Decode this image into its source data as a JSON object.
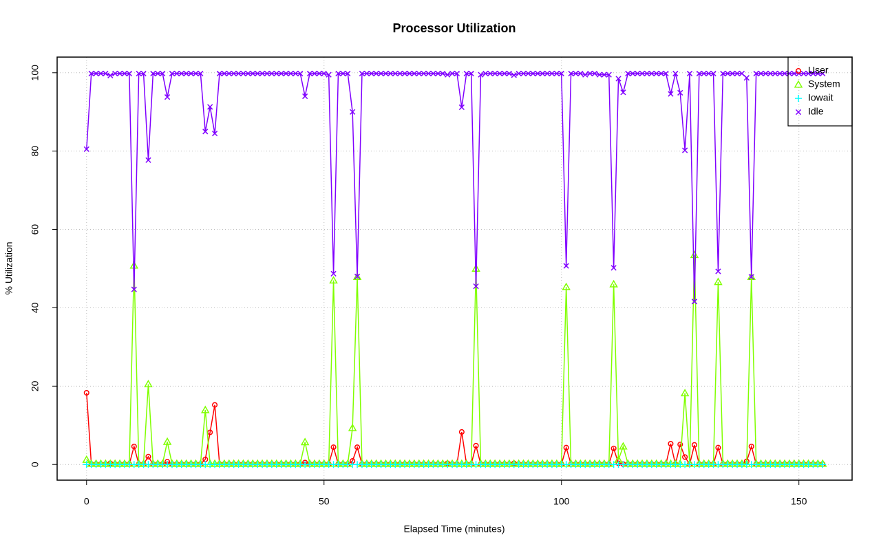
{
  "chart_data": {
    "type": "line",
    "title": "Processor Utilization",
    "x_label": "Elapsed Time (minutes)",
    "y_label": "% Utilization",
    "xlim": [
      -6.2,
      161.2
    ],
    "ylim": [
      -4,
      104
    ],
    "xticks": [
      0,
      50,
      100,
      150
    ],
    "yticks": [
      0,
      20,
      40,
      60,
      80,
      100
    ],
    "grid": true,
    "legend": "topright",
    "x": [
      0,
      1,
      2,
      3,
      4,
      5,
      6,
      7,
      8,
      9,
      10,
      11,
      12,
      13,
      14,
      15,
      16,
      17,
      18,
      19,
      20,
      21,
      22,
      23,
      24,
      25,
      26,
      27,
      28,
      29,
      30,
      31,
      32,
      33,
      34,
      35,
      36,
      37,
      38,
      39,
      40,
      41,
      42,
      43,
      44,
      45,
      46,
      47,
      48,
      49,
      50,
      51,
      52,
      53,
      54,
      55,
      56,
      57,
      58,
      59,
      60,
      61,
      62,
      63,
      64,
      65,
      66,
      67,
      68,
      69,
      70,
      71,
      72,
      73,
      74,
      75,
      76,
      77,
      78,
      79,
      80,
      81,
      82,
      83,
      84,
      85,
      86,
      87,
      88,
      89,
      90,
      91,
      92,
      93,
      94,
      95,
      96,
      97,
      98,
      99,
      100,
      101,
      102,
      103,
      104,
      105,
      106,
      107,
      108,
      109,
      110,
      111,
      112,
      113,
      114,
      115,
      116,
      117,
      118,
      119,
      120,
      121,
      122,
      123,
      124,
      125,
      126,
      127,
      128,
      129,
      130,
      131,
      132,
      133,
      134,
      135,
      136,
      137,
      138,
      139,
      140,
      141,
      142,
      143,
      144,
      145,
      146,
      147,
      148,
      149,
      150,
      151,
      152,
      153,
      154,
      155
    ],
    "series": [
      {
        "name": "User",
        "color": "#ff0000",
        "marker": "circle",
        "values": [
          18.3,
          0.1,
          0.1,
          0.1,
          0.1,
          0.3,
          0.1,
          0.1,
          0.1,
          0.1,
          4.6,
          0.1,
          0.1,
          2.0,
          0.1,
          0.1,
          0.1,
          0.7,
          0.1,
          0.1,
          0.1,
          0.1,
          0.1,
          0.1,
          0.1,
          1.3,
          8.2,
          15.2,
          0.1,
          0.1,
          0.1,
          0.1,
          0.1,
          0.1,
          0.1,
          0.1,
          0.1,
          0.1,
          0.1,
          0.1,
          0.1,
          0.1,
          0.1,
          0.1,
          0.1,
          0.1,
          0.5,
          0.1,
          0.1,
          0.1,
          0.1,
          0.1,
          4.4,
          0.1,
          0.1,
          0.1,
          0.9,
          4.4,
          0.1,
          0.1,
          0.1,
          0.1,
          0.1,
          0.1,
          0.1,
          0.1,
          0.1,
          0.1,
          0.1,
          0.1,
          0.1,
          0.1,
          0.1,
          0.1,
          0.1,
          0.1,
          0.3,
          0.1,
          0.1,
          8.3,
          0.1,
          0.1,
          4.8,
          0.1,
          0.1,
          0.1,
          0.1,
          0.1,
          0.1,
          0.1,
          0.3,
          0.1,
          0.1,
          0.1,
          0.1,
          0.1,
          0.1,
          0.1,
          0.1,
          0.1,
          0.1,
          4.3,
          0.1,
          0.1,
          0.1,
          0.1,
          0.1,
          0.1,
          0.1,
          0.1,
          0.1,
          4.1,
          0.3,
          0.1,
          0.1,
          0.1,
          0.1,
          0.1,
          0.1,
          0.1,
          0.1,
          0.1,
          0.1,
          5.3,
          0.1,
          5.1,
          1.9,
          0.1,
          5.0,
          0.1,
          0.1,
          0.1,
          0.1,
          4.3,
          0.1,
          0.1,
          0.1,
          0.1,
          0.1,
          0.8,
          4.6,
          0.1,
          0.1,
          0.1,
          0.1,
          0.1,
          0.1,
          0.1,
          0.1,
          0.1,
          0.1,
          0.1,
          0.1,
          0.1,
          0.1,
          0.1
        ]
      },
      {
        "name": "System",
        "color": "#80ff00",
        "marker": "triangle",
        "values": [
          1.2,
          0.2,
          0.2,
          0.2,
          0.2,
          0.2,
          0.2,
          0.2,
          0.2,
          0.2,
          50.8,
          0.2,
          0.2,
          20.5,
          0.2,
          0.2,
          0.2,
          5.8,
          0.2,
          0.2,
          0.2,
          0.2,
          0.2,
          0.2,
          0.2,
          13.9,
          0.2,
          0.2,
          0.2,
          0.2,
          0.2,
          0.2,
          0.2,
          0.2,
          0.2,
          0.2,
          0.2,
          0.2,
          0.2,
          0.2,
          0.2,
          0.2,
          0.2,
          0.2,
          0.2,
          0.2,
          5.7,
          0.2,
          0.2,
          0.2,
          0.2,
          0.2,
          47.0,
          0.2,
          0.2,
          0.2,
          9.3,
          47.9,
          0.2,
          0.2,
          0.2,
          0.2,
          0.2,
          0.2,
          0.2,
          0.2,
          0.2,
          0.2,
          0.2,
          0.2,
          0.2,
          0.2,
          0.2,
          0.2,
          0.2,
          0.2,
          0.2,
          0.2,
          0.2,
          0.2,
          0.2,
          0.2,
          50.0,
          0.2,
          0.2,
          0.2,
          0.2,
          0.2,
          0.2,
          0.2,
          0.2,
          0.2,
          0.2,
          0.2,
          0.2,
          0.2,
          0.2,
          0.2,
          0.2,
          0.2,
          0.2,
          45.3,
          0.2,
          0.2,
          0.2,
          0.2,
          0.2,
          0.2,
          0.2,
          0.2,
          0.2,
          46.0,
          1.2,
          4.6,
          0.2,
          0.2,
          0.2,
          0.2,
          0.2,
          0.2,
          0.2,
          0.2,
          0.2,
          0.2,
          0.2,
          0.2,
          18.2,
          0.2,
          53.5,
          0.2,
          0.2,
          0.2,
          0.2,
          46.6,
          0.2,
          0.2,
          0.2,
          0.2,
          0.2,
          0.2,
          47.9,
          0.2,
          0.2,
          0.2,
          0.2,
          0.2,
          0.2,
          0.2,
          0.2,
          0.2,
          0.2,
          0.2,
          0.2,
          0.2,
          0.2,
          0.2
        ]
      },
      {
        "name": "Iowait",
        "color": "#00ffff",
        "marker": "plus",
        "values": [
          0,
          0,
          0,
          0,
          0,
          0,
          0,
          0,
          0,
          0,
          0,
          0,
          0,
          0,
          0,
          0,
          0,
          0,
          0,
          0,
          0,
          0,
          0,
          0,
          0,
          0,
          0,
          0,
          0,
          0,
          0,
          0,
          0,
          0,
          0,
          0,
          0,
          0,
          0,
          0,
          0,
          0,
          0,
          0,
          0,
          0,
          0,
          0,
          0,
          0,
          0,
          0,
          0,
          0,
          0,
          0,
          0,
          0,
          0,
          0,
          0,
          0,
          0,
          0,
          0,
          0,
          0,
          0,
          0,
          0,
          0,
          0,
          0,
          0,
          0,
          0,
          0,
          0,
          0,
          0,
          0,
          0,
          0,
          0,
          0,
          0,
          0,
          0,
          0,
          0,
          0,
          0,
          0,
          0,
          0,
          0,
          0,
          0,
          0,
          0,
          0,
          0,
          0,
          0,
          0,
          0,
          0,
          0,
          0,
          0,
          0,
          0,
          0,
          0,
          0,
          0,
          0,
          0,
          0,
          0,
          0,
          0,
          0,
          0,
          0,
          0,
          0,
          0,
          0,
          0,
          0,
          0,
          0,
          0,
          0,
          0,
          0,
          0,
          0,
          0,
          0,
          0,
          0,
          0,
          0,
          0,
          0,
          0,
          0,
          0,
          0,
          0,
          0,
          0,
          0,
          0
        ]
      },
      {
        "name": "Idle",
        "color": "#8000ff",
        "marker": "cross",
        "values": [
          80.5,
          99.8,
          99.8,
          99.8,
          99.8,
          99.3,
          99.8,
          99.8,
          99.8,
          99.8,
          44.7,
          99.8,
          99.8,
          77.7,
          99.8,
          99.8,
          99.8,
          93.8,
          99.8,
          99.8,
          99.8,
          99.8,
          99.8,
          99.8,
          99.8,
          85.0,
          91.3,
          84.5,
          99.8,
          99.8,
          99.8,
          99.8,
          99.8,
          99.8,
          99.8,
          99.8,
          99.8,
          99.8,
          99.8,
          99.8,
          99.8,
          99.8,
          99.8,
          99.8,
          99.8,
          99.8,
          94.0,
          99.8,
          99.8,
          99.8,
          99.8,
          99.5,
          48.7,
          99.8,
          99.8,
          99.8,
          90.0,
          48.0,
          99.8,
          99.8,
          99.8,
          99.8,
          99.8,
          99.8,
          99.8,
          99.8,
          99.8,
          99.8,
          99.8,
          99.8,
          99.8,
          99.8,
          99.8,
          99.8,
          99.8,
          99.8,
          99.5,
          99.8,
          99.8,
          91.2,
          99.8,
          99.8,
          45.5,
          99.5,
          99.8,
          99.8,
          99.8,
          99.8,
          99.8,
          99.8,
          99.4,
          99.8,
          99.8,
          99.8,
          99.8,
          99.8,
          99.8,
          99.8,
          99.8,
          99.8,
          99.8,
          50.7,
          99.8,
          99.8,
          99.8,
          99.5,
          99.8,
          99.8,
          99.5,
          99.5,
          99.5,
          50.2,
          98.5,
          95.0,
          99.8,
          99.8,
          99.8,
          99.8,
          99.8,
          99.8,
          99.8,
          99.8,
          99.8,
          94.6,
          99.8,
          94.9,
          80.2,
          99.8,
          41.6,
          99.8,
          99.8,
          99.8,
          99.8,
          49.3,
          99.8,
          99.8,
          99.8,
          99.8,
          99.8,
          98.7,
          47.9,
          99.8,
          99.8,
          99.8,
          99.8,
          99.8,
          99.8,
          99.8,
          99.8,
          99.8,
          99.8,
          99.8,
          99.8,
          99.8,
          99.8,
          99.8
        ]
      }
    ]
  }
}
